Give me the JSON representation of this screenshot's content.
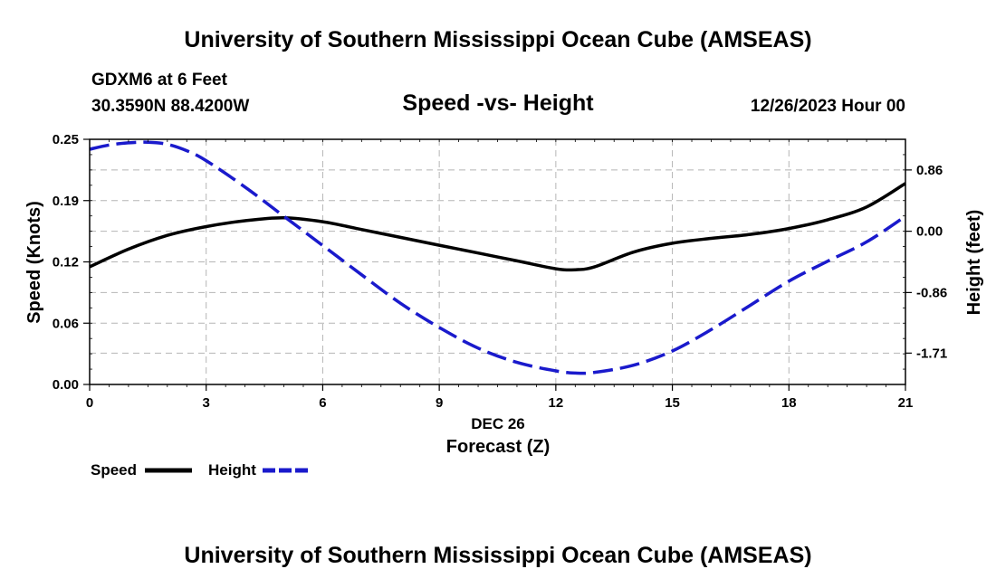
{
  "header": {
    "title": "University of Southern Mississippi Ocean Cube (AMSEAS)",
    "station": "GDXM6 at 6 Feet",
    "coords": "30.3590N  88.4200W",
    "datetime": "12/26/2023 Hour 00"
  },
  "footer": {
    "title": "University of Southern Mississippi Ocean Cube (AMSEAS)"
  },
  "chart_data": {
    "type": "line",
    "title": "Speed -vs- Height",
    "xlabel_date": "DEC 26",
    "xlabel": "Forecast (Z)",
    "ylabel": "Speed (Knots)",
    "y2label": "Height (feet)",
    "xlim": [
      0,
      21
    ],
    "ylim": [
      0,
      0.25
    ],
    "y2lim": [
      -2.15,
      1.29
    ],
    "x_ticks": [
      "0",
      "3",
      "6",
      "9",
      "12",
      "15",
      "18",
      "21"
    ],
    "y_ticks": [
      "0.00",
      "0.06",
      "0.12",
      "0.19",
      "0.25"
    ],
    "y_tick_values": [
      0,
      0.0625,
      0.125,
      0.1875,
      0.25
    ],
    "y2_ticks": [
      "-1.71",
      "-0.86",
      "0.00",
      "0.86"
    ],
    "y2_tick_values": [
      -1.71,
      -0.86,
      0.0,
      0.86
    ],
    "grid": true,
    "series": [
      {
        "name": "Speed",
        "axis": "left",
        "color": "#000000",
        "style": "solid",
        "x": [
          0,
          1,
          2,
          3,
          4,
          5,
          6,
          7,
          8,
          9,
          10,
          11,
          12,
          12.5,
          13,
          14,
          15,
          16,
          17,
          18,
          19,
          20,
          21
        ],
        "values": [
          0.12,
          0.138,
          0.152,
          0.161,
          0.167,
          0.17,
          0.166,
          0.158,
          0.15,
          0.142,
          0.134,
          0.126,
          0.118,
          0.117,
          0.12,
          0.135,
          0.144,
          0.149,
          0.153,
          0.159,
          0.168,
          0.181,
          0.205
        ]
      },
      {
        "name": "Height",
        "axis": "right",
        "color": "#1a1acc",
        "style": "dashed",
        "x": [
          0,
          0.5,
          1,
          1.5,
          2,
          2.5,
          3,
          4,
          5,
          6,
          7,
          8,
          9,
          10,
          11,
          12,
          12.5,
          13,
          14,
          15,
          16,
          17,
          18,
          19,
          20,
          21
        ],
        "values": [
          1.15,
          1.21,
          1.24,
          1.25,
          1.22,
          1.13,
          0.99,
          0.62,
          0.21,
          -0.2,
          -0.61,
          -1.01,
          -1.35,
          -1.64,
          -1.84,
          -1.96,
          -1.99,
          -1.98,
          -1.88,
          -1.68,
          -1.38,
          -1.04,
          -0.7,
          -0.42,
          -0.15,
          0.21
        ]
      }
    ],
    "legend": [
      {
        "label": "Speed",
        "color": "#000000",
        "style": "solid"
      },
      {
        "label": "Height",
        "color": "#1a1acc",
        "style": "dashed"
      }
    ],
    "legend_position": "bottom-left"
  }
}
